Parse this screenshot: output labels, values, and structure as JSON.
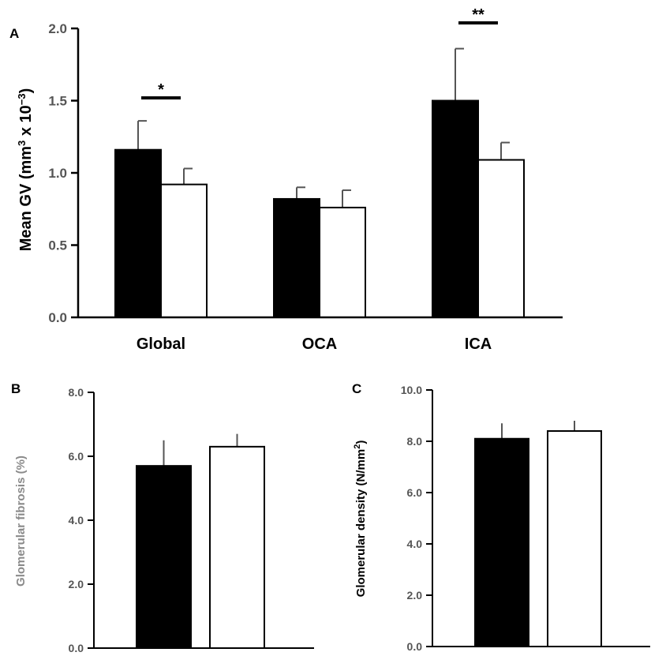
{
  "chart_data": [
    {
      "panel": "A",
      "type": "bar",
      "ylabel_main": "Mean GV (mm",
      "ylabel_sup1": "3",
      "ylabel_mid": " x 10",
      "ylabel_sup2": "−3",
      "ylabel_end": ")",
      "ylim": [
        0,
        2.0
      ],
      "yticks": [
        "0.0",
        "0.5",
        "1.0",
        "1.5",
        "2.0"
      ],
      "categories": [
        "Global",
        "OCA",
        "ICA"
      ],
      "series": [
        {
          "fill": "#000000",
          "values": [
            1.16,
            0.82,
            1.5
          ],
          "errors": [
            0.2,
            0.08,
            0.36
          ]
        },
        {
          "fill": "#ffffff",
          "values": [
            0.92,
            0.76,
            1.09
          ],
          "errors": [
            0.11,
            0.12,
            0.12
          ]
        }
      ],
      "significance": [
        {
          "category": "Global",
          "label": "*"
        },
        {
          "category": "ICA",
          "label": "**"
        }
      ]
    },
    {
      "panel": "B",
      "type": "bar",
      "ylabel": "Glomerular fibrosis (%)",
      "ylim": [
        0,
        8.0
      ],
      "yticks": [
        "0.0",
        "2.0",
        "4.0",
        "6.0",
        "8.0"
      ],
      "series": [
        {
          "fill": "#000000",
          "values": [
            5.7
          ],
          "errors": [
            0.8
          ]
        },
        {
          "fill": "#ffffff",
          "values": [
            6.3
          ],
          "errors": [
            0.4
          ]
        }
      ]
    },
    {
      "panel": "C",
      "type": "bar",
      "ylabel_main": "Glomerular density (N/mm",
      "ylabel_sup": "2",
      "ylabel_end": ")",
      "ylim": [
        0,
        10.0
      ],
      "yticks": [
        "0.0",
        "2.0",
        "4.0",
        "6.0",
        "8.0",
        "10.0"
      ],
      "series": [
        {
          "fill": "#000000",
          "values": [
            8.1
          ],
          "errors": [
            0.6
          ]
        },
        {
          "fill": "#ffffff",
          "values": [
            8.4
          ],
          "errors": [
            0.4
          ]
        }
      ]
    }
  ]
}
